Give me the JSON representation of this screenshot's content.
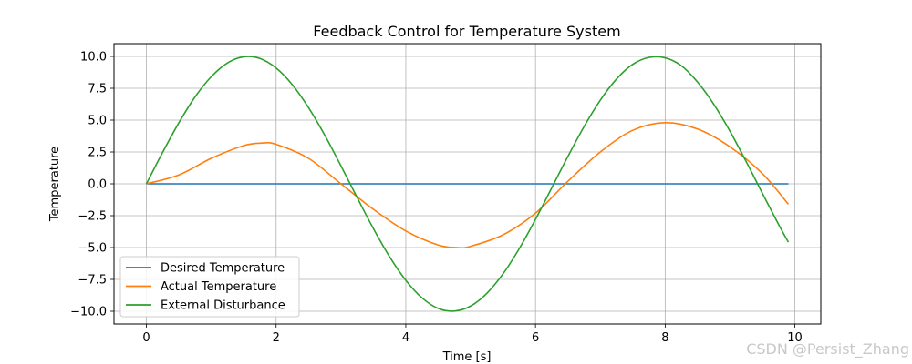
{
  "chart_data": {
    "type": "line",
    "title": "Feedback Control for Temperature System",
    "xlabel": "Time [s]",
    "ylabel": "Temperature",
    "xlim": [
      -0.5,
      10.4
    ],
    "ylim": [
      -11.0,
      11.0
    ],
    "xticks": [
      0,
      2,
      4,
      6,
      8,
      10
    ],
    "yticks": [
      -10.0,
      -7.5,
      -5.0,
      -2.5,
      0.0,
      2.5,
      5.0,
      7.5,
      10.0
    ],
    "xtick_labels": [
      "0",
      "2",
      "4",
      "6",
      "8",
      "10"
    ],
    "ytick_labels": [
      "−10.0",
      "−7.5",
      "−5.0",
      "−2.5",
      "0.0",
      "2.5",
      "5.0",
      "7.5",
      "10.0"
    ],
    "grid": true,
    "legend_position": "lower-left",
    "series": [
      {
        "name": "Desired Temperature",
        "color": "#1f77b4",
        "x": [
          0.0,
          9.9
        ],
        "y": [
          0.0,
          0.0
        ]
      },
      {
        "name": "Actual Temperature",
        "color": "#ff7f0e",
        "x": [
          0.0,
          0.5,
          1.0,
          1.5,
          1.78,
          2.0,
          2.5,
          3.0,
          3.5,
          4.0,
          4.5,
          4.8,
          5.0,
          5.5,
          6.0,
          6.5,
          7.0,
          7.5,
          8.0,
          8.5,
          9.0,
          9.5,
          9.9
        ],
        "y": [
          0.0,
          0.7,
          2.0,
          3.0,
          3.2,
          3.1,
          2.0,
          0.0,
          -2.0,
          -3.7,
          -4.8,
          -5.0,
          -4.9,
          -4.0,
          -2.3,
          0.2,
          2.5,
          4.2,
          4.8,
          4.3,
          2.9,
          0.8,
          -1.6
        ]
      },
      {
        "name": "External Disturbance",
        "color": "#2ca02c",
        "x": [
          0.0,
          0.25,
          0.5,
          0.75,
          1.0,
          1.25,
          1.5,
          1.75,
          2.0,
          2.25,
          2.5,
          2.75,
          3.0,
          3.25,
          3.5,
          3.75,
          4.0,
          4.25,
          4.5,
          4.75,
          5.0,
          5.25,
          5.5,
          5.75,
          6.0,
          6.25,
          6.5,
          6.75,
          7.0,
          7.25,
          7.5,
          7.75,
          8.0,
          8.25,
          8.5,
          8.75,
          9.0,
          9.25,
          9.5,
          9.75,
          9.9
        ],
        "y": [
          0.0,
          2.47,
          4.79,
          6.82,
          8.41,
          9.49,
          9.97,
          9.84,
          9.09,
          7.78,
          5.98,
          3.82,
          1.41,
          -1.08,
          -3.51,
          -5.72,
          -7.57,
          -8.95,
          -9.78,
          -9.99,
          -9.59,
          -8.59,
          -7.06,
          -5.08,
          -2.79,
          -0.32,
          2.15,
          4.5,
          6.57,
          8.23,
          9.38,
          9.92,
          9.89,
          9.27,
          7.98,
          6.24,
          4.12,
          1.74,
          -0.75,
          -3.2,
          -4.58
        ]
      }
    ]
  },
  "watermark": "CSDN @Persist_Zhang"
}
